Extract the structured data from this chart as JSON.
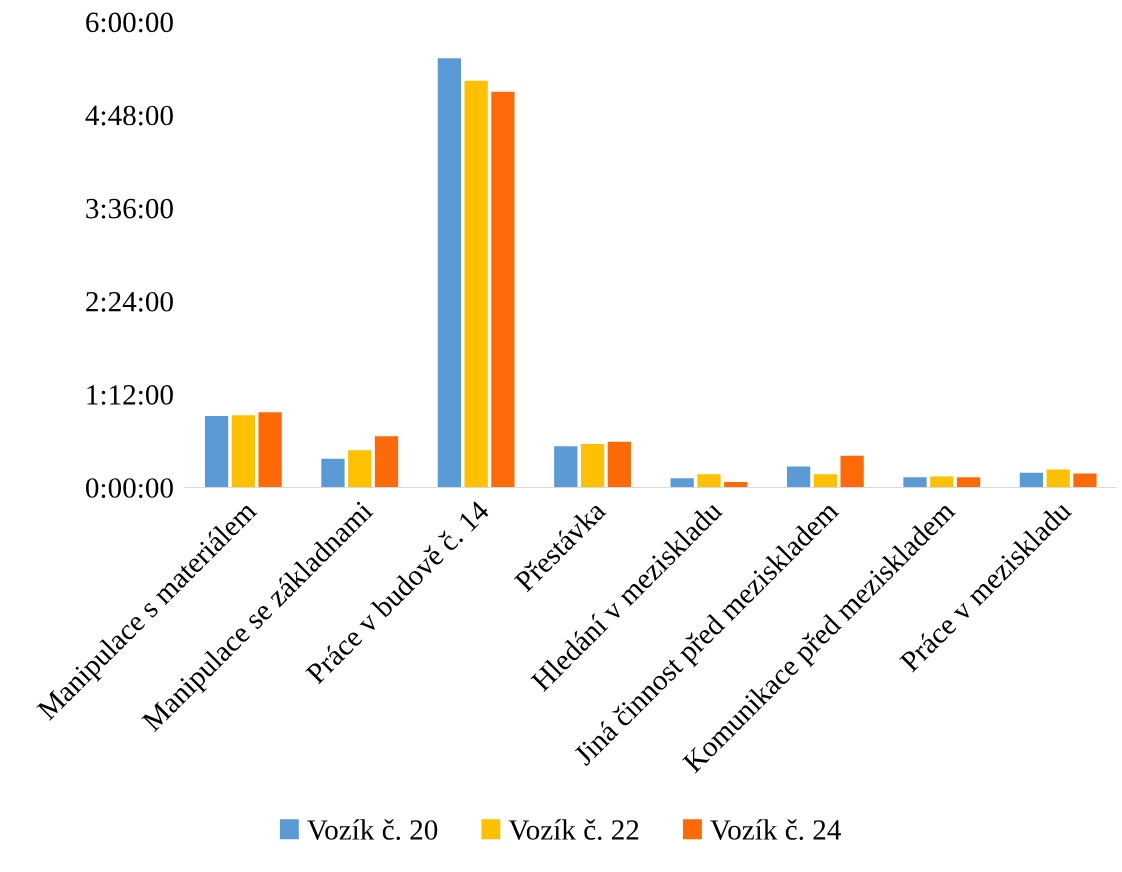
{
  "chart_data": {
    "type": "bar",
    "categories": [
      "Manipulace s materiálem",
      "Manipulace se základnami",
      "Práce v budově č. 14",
      "Přestávka",
      "Hledání v meziskladu",
      "Jiná činnost před meziskladem",
      "Komunikace před meziskladem",
      "Práce v meziskladu"
    ],
    "series": [
      {
        "name": "Vozík č. 20",
        "color": "#5b9bd5",
        "values": [
          0.92,
          0.37,
          5.53,
          0.53,
          0.12,
          0.27,
          0.13,
          0.19
        ]
      },
      {
        "name": "Vozík č. 22",
        "color": "#ffc000",
        "values": [
          0.93,
          0.48,
          5.24,
          0.56,
          0.17,
          0.17,
          0.14,
          0.23
        ]
      },
      {
        "name": "Vozík č. 24",
        "color": "#ff6a08",
        "values": [
          0.97,
          0.66,
          5.1,
          0.59,
          0.07,
          0.41,
          0.13,
          0.18
        ]
      }
    ],
    "ylim": [
      0,
      6
    ],
    "yticks": [
      {
        "value": 0,
        "label": "0:00:00"
      },
      {
        "value": 1.2,
        "label": "1:12:00"
      },
      {
        "value": 2.4,
        "label": "2:24:00"
      },
      {
        "value": 3.6,
        "label": "3:36:00"
      },
      {
        "value": 4.8,
        "label": "4:48:00"
      },
      {
        "value": 6,
        "label": "6:00:00"
      }
    ],
    "grid": false,
    "legend": "bottom"
  }
}
